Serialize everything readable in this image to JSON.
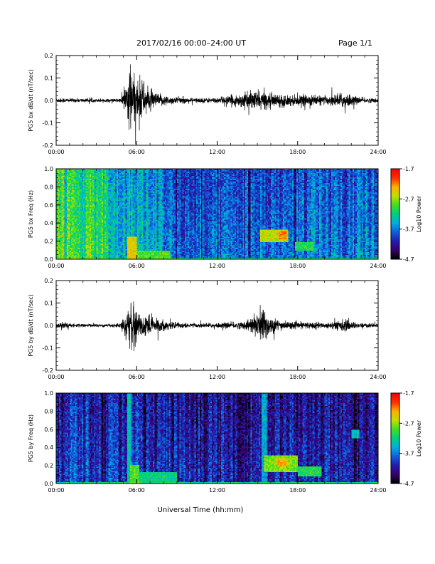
{
  "header": {
    "title": "2017/02/16  00:00–24:00 UT",
    "page": "Page 1/1"
  },
  "xlabel": "Universal Time (hh:mm)",
  "colors": {
    "waveform": "#000000",
    "colormap": [
      "#000000",
      "#3a0070",
      "#1f1fb0",
      "#1060e0",
      "#00b0e0",
      "#00d080",
      "#40e020",
      "#c0e000",
      "#ffb000",
      "#ff3000",
      "#ff0000"
    ]
  },
  "chart_data": [
    {
      "type": "line",
      "ylabel": "PG5 bx dB/dt (nT/sec)",
      "xlim": [
        0,
        24
      ],
      "ylim": [
        -0.2,
        0.2
      ],
      "x_ticks": [
        "00:00",
        "06:00",
        "12:00",
        "18:00",
        "24:00"
      ],
      "y_ticks": [
        "0.2",
        "0.1",
        "0.0",
        "-0.1",
        "-0.2"
      ],
      "y_tick_values": [
        0.2,
        0.1,
        0.0,
        -0.1,
        -0.2
      ],
      "activity_envelope": [
        {
          "t": 0,
          "amp": 0.012
        },
        {
          "t": 1,
          "amp": 0.01
        },
        {
          "t": 2,
          "amp": 0.009
        },
        {
          "t": 3,
          "amp": 0.008
        },
        {
          "t": 4,
          "amp": 0.008
        },
        {
          "t": 4.8,
          "amp": 0.01
        },
        {
          "t": 5.2,
          "amp": 0.08
        },
        {
          "t": 5.5,
          "amp": 0.19
        },
        {
          "t": 5.8,
          "amp": 0.12
        },
        {
          "t": 6.3,
          "amp": 0.11
        },
        {
          "t": 6.8,
          "amp": 0.06
        },
        {
          "t": 7.5,
          "amp": 0.035
        },
        {
          "t": 8.5,
          "amp": 0.02
        },
        {
          "t": 10,
          "amp": 0.012
        },
        {
          "t": 12,
          "amp": 0.013
        },
        {
          "t": 13.5,
          "amp": 0.03
        },
        {
          "t": 15,
          "amp": 0.05
        },
        {
          "t": 16,
          "amp": 0.035
        },
        {
          "t": 17,
          "amp": 0.03
        },
        {
          "t": 18,
          "amp": 0.025
        },
        {
          "t": 19,
          "amp": 0.03
        },
        {
          "t": 20,
          "amp": 0.02
        },
        {
          "t": 21.5,
          "amp": 0.04
        },
        {
          "t": 22.5,
          "amp": 0.015
        },
        {
          "t": 24,
          "amp": 0.01
        }
      ]
    },
    {
      "type": "heatmap",
      "ylabel": "PG5 bx Freq (Hz)",
      "xlim": [
        0,
        24
      ],
      "ylim": [
        0.0,
        1.0
      ],
      "x_ticks": [
        "00:00",
        "06:00",
        "12:00",
        "18:00",
        "24:00"
      ],
      "y_ticks": [
        "1.0",
        "0.8",
        "0.6",
        "0.4",
        "0.2",
        "0.0"
      ],
      "y_tick_values": [
        1.0,
        0.8,
        0.6,
        0.4,
        0.2,
        0.0
      ],
      "colorbar": {
        "label": "Log10 Power",
        "range": [
          -4.7,
          -1.7
        ],
        "ticks": [
          "-1.7",
          "-2.7",
          "-3.7",
          "-4.7"
        ]
      },
      "background_level": [
        {
          "t": 0,
          "v": 0.55
        },
        {
          "t": 3.5,
          "v": 0.5
        },
        {
          "t": 4.0,
          "v": 0.38
        },
        {
          "t": 6.5,
          "v": 0.38
        },
        {
          "t": 8.0,
          "v": 0.32
        },
        {
          "t": 9.5,
          "v": 0.22
        },
        {
          "t": 12,
          "v": 0.24
        },
        {
          "t": 16,
          "v": 0.26
        },
        {
          "t": 24,
          "v": 0.28
        }
      ],
      "features": [
        {
          "t0": 5.3,
          "t1": 6.0,
          "f0": 0.0,
          "f1": 0.25,
          "v": 0.75
        },
        {
          "t0": 6.0,
          "t1": 8.5,
          "f0": 0.0,
          "f1": 0.1,
          "v": 0.6
        },
        {
          "t0": 15.2,
          "t1": 17.3,
          "f0": 0.18,
          "f1": 0.33,
          "v": 0.7
        },
        {
          "t0": 16.5,
          "t1": 17.2,
          "f0": 0.22,
          "f1": 0.32,
          "v": 0.82
        },
        {
          "t0": 17.8,
          "t1": 19.2,
          "f0": 0.1,
          "f1": 0.18,
          "v": 0.55
        }
      ]
    },
    {
      "type": "line",
      "ylabel": "PG5 by dB/dt (nT/sec)",
      "xlim": [
        0,
        24
      ],
      "ylim": [
        -0.2,
        0.2
      ],
      "x_ticks": [
        "00:00",
        "06:00",
        "12:00",
        "18:00",
        "24:00"
      ],
      "y_ticks": [
        "0.2",
        "0.1",
        "0.0",
        "-0.1",
        "-0.2"
      ],
      "y_tick_values": [
        0.2,
        0.1,
        0.0,
        -0.1,
        -0.2
      ],
      "activity_envelope": [
        {
          "t": 0,
          "amp": 0.012
        },
        {
          "t": 0.5,
          "amp": 0.02
        },
        {
          "t": 1,
          "amp": 0.009
        },
        {
          "t": 2,
          "amp": 0.008
        },
        {
          "t": 3,
          "amp": 0.007
        },
        {
          "t": 4.8,
          "amp": 0.01
        },
        {
          "t": 5.2,
          "amp": 0.07
        },
        {
          "t": 5.6,
          "amp": 0.1
        },
        {
          "t": 6.0,
          "amp": 0.07
        },
        {
          "t": 6.8,
          "amp": 0.06
        },
        {
          "t": 7.5,
          "amp": 0.035
        },
        {
          "t": 8.5,
          "amp": 0.018
        },
        {
          "t": 10,
          "amp": 0.01
        },
        {
          "t": 12,
          "amp": 0.012
        },
        {
          "t": 14,
          "amp": 0.018
        },
        {
          "t": 15,
          "amp": 0.06
        },
        {
          "t": 15.4,
          "amp": 0.11
        },
        {
          "t": 16,
          "amp": 0.04
        },
        {
          "t": 17,
          "amp": 0.02
        },
        {
          "t": 18,
          "amp": 0.015
        },
        {
          "t": 19,
          "amp": 0.018
        },
        {
          "t": 20,
          "amp": 0.012
        },
        {
          "t": 21.5,
          "amp": 0.03
        },
        {
          "t": 22.5,
          "amp": 0.012
        },
        {
          "t": 24,
          "amp": 0.01
        }
      ]
    },
    {
      "type": "heatmap",
      "ylabel": "PG5 by Freq (Hz)",
      "xlim": [
        0,
        24
      ],
      "ylim": [
        0.0,
        1.0
      ],
      "x_ticks": [
        "00:00",
        "06:00",
        "12:00",
        "18:00",
        "24:00"
      ],
      "y_ticks": [
        "1.0",
        "0.8",
        "0.6",
        "0.4",
        "0.2",
        "0.0"
      ],
      "y_tick_values": [
        1.0,
        0.8,
        0.6,
        0.4,
        0.2,
        0.0
      ],
      "colorbar": {
        "label": "Log10 Power",
        "range": [
          -4.7,
          -1.7
        ],
        "ticks": [
          "-1.7",
          "-2.7",
          "-3.7",
          "-4.7"
        ]
      },
      "background_level": [
        {
          "t": 0,
          "v": 0.22
        },
        {
          "t": 3.5,
          "v": 0.2
        },
        {
          "t": 6,
          "v": 0.18
        },
        {
          "t": 12,
          "v": 0.14
        },
        {
          "t": 16,
          "v": 0.15
        },
        {
          "t": 24,
          "v": 0.13
        }
      ],
      "features": [
        {
          "t0": 5.3,
          "t1": 5.6,
          "f0": 0.0,
          "f1": 1.0,
          "v": 0.45
        },
        {
          "t0": 5.5,
          "t1": 6.2,
          "f0": 0.0,
          "f1": 0.2,
          "v": 0.6
        },
        {
          "t0": 6.2,
          "t1": 9.0,
          "f0": 0.0,
          "f1": 0.12,
          "v": 0.5
        },
        {
          "t0": 15.3,
          "t1": 15.7,
          "f0": 0.0,
          "f1": 1.0,
          "v": 0.4
        },
        {
          "t0": 15.5,
          "t1": 18.0,
          "f0": 0.12,
          "f1": 0.32,
          "v": 0.65
        },
        {
          "t0": 16.5,
          "t1": 17.3,
          "f0": 0.18,
          "f1": 0.28,
          "v": 0.78
        },
        {
          "t0": 18.0,
          "t1": 19.8,
          "f0": 0.08,
          "f1": 0.18,
          "v": 0.55
        },
        {
          "t0": 22.0,
          "t1": 22.6,
          "f0": 0.5,
          "f1": 0.6,
          "v": 0.45
        }
      ]
    }
  ]
}
